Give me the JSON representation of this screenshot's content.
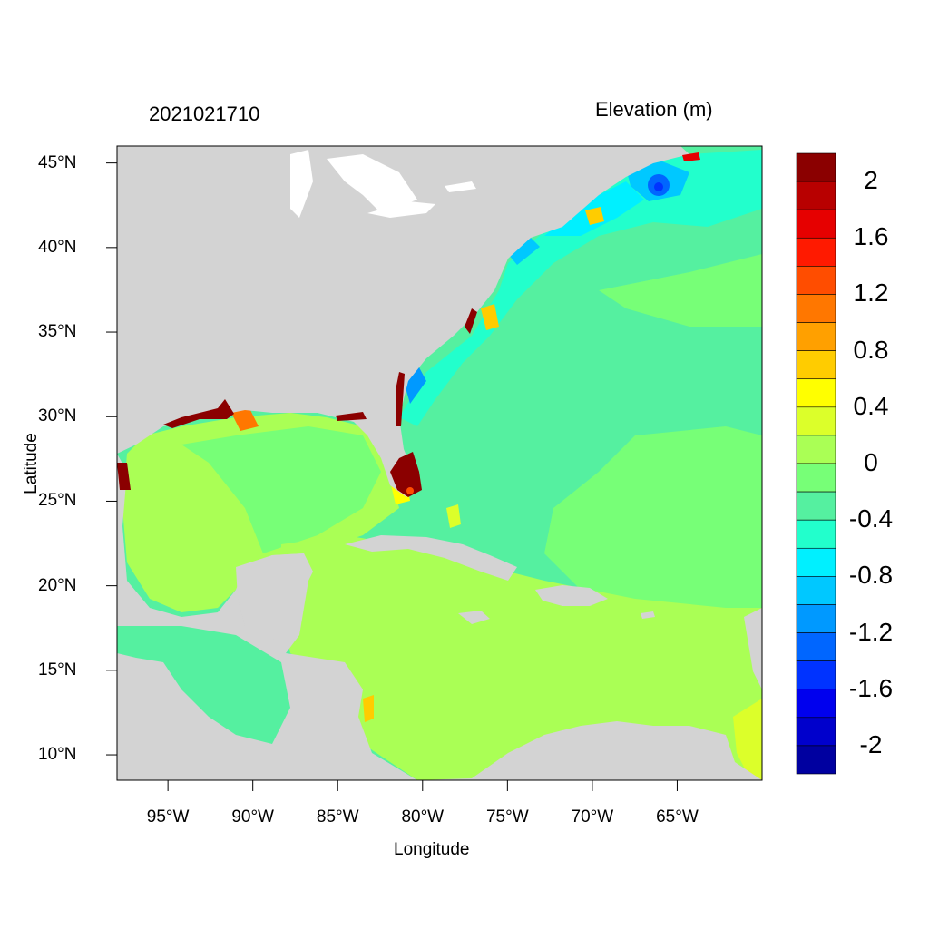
{
  "header": {
    "timestamp": "2021021710",
    "variable": "Elevation (m)"
  },
  "axes": {
    "xlabel": "Longitude",
    "ylabel": "Latitude",
    "lat_ticks": [
      {
        "value": 45,
        "label": "45°N"
      },
      {
        "value": 40,
        "label": "40°N"
      },
      {
        "value": 35,
        "label": "35°N"
      },
      {
        "value": 30,
        "label": "30°N"
      },
      {
        "value": 25,
        "label": "25°N"
      },
      {
        "value": 20,
        "label": "20°N"
      },
      {
        "value": 15,
        "label": "15°N"
      },
      {
        "value": 10,
        "label": "10°N"
      }
    ],
    "lon_ticks": [
      {
        "value": -95,
        "label": "95°W"
      },
      {
        "value": -90,
        "label": "90°W"
      },
      {
        "value": -85,
        "label": "85°W"
      },
      {
        "value": -80,
        "label": "80°W"
      },
      {
        "value": -75,
        "label": "75°W"
      },
      {
        "value": -70,
        "label": "70°W"
      },
      {
        "value": -65,
        "label": "65°W"
      }
    ],
    "lon_range": [
      -98,
      -60
    ],
    "lat_range": [
      8.5,
      46
    ]
  },
  "colorbar": {
    "colors_top_to_bottom": [
      "#8b0000",
      "#b80000",
      "#e60000",
      "#ff1a00",
      "#ff4d00",
      "#ff7700",
      "#ffa000",
      "#ffcc00",
      "#ffff00",
      "#dcff2a",
      "#aaff55",
      "#77ff77",
      "#55f0a0",
      "#22ffcc",
      "#00f0ff",
      "#00c8ff",
      "#0099ff",
      "#0066ff",
      "#0033ff",
      "#0000ee",
      "#0000cc",
      "#0000a0"
    ],
    "labels": [
      "2",
      "1.6",
      "1.2",
      "0.8",
      "0.4",
      "0",
      "-0.4",
      "-0.8",
      "-1.2",
      "-1.6",
      "-2"
    ]
  },
  "palette": {
    "land": "#d3d3d3",
    "gulf_caribbean": "#aaff55",
    "near_zero": "#77ff77",
    "atlantic": "#55f0a0",
    "shelf": "#22ffcc",
    "deep_negative": "#00f0ff",
    "coastal_surge": "#8b0000"
  }
}
